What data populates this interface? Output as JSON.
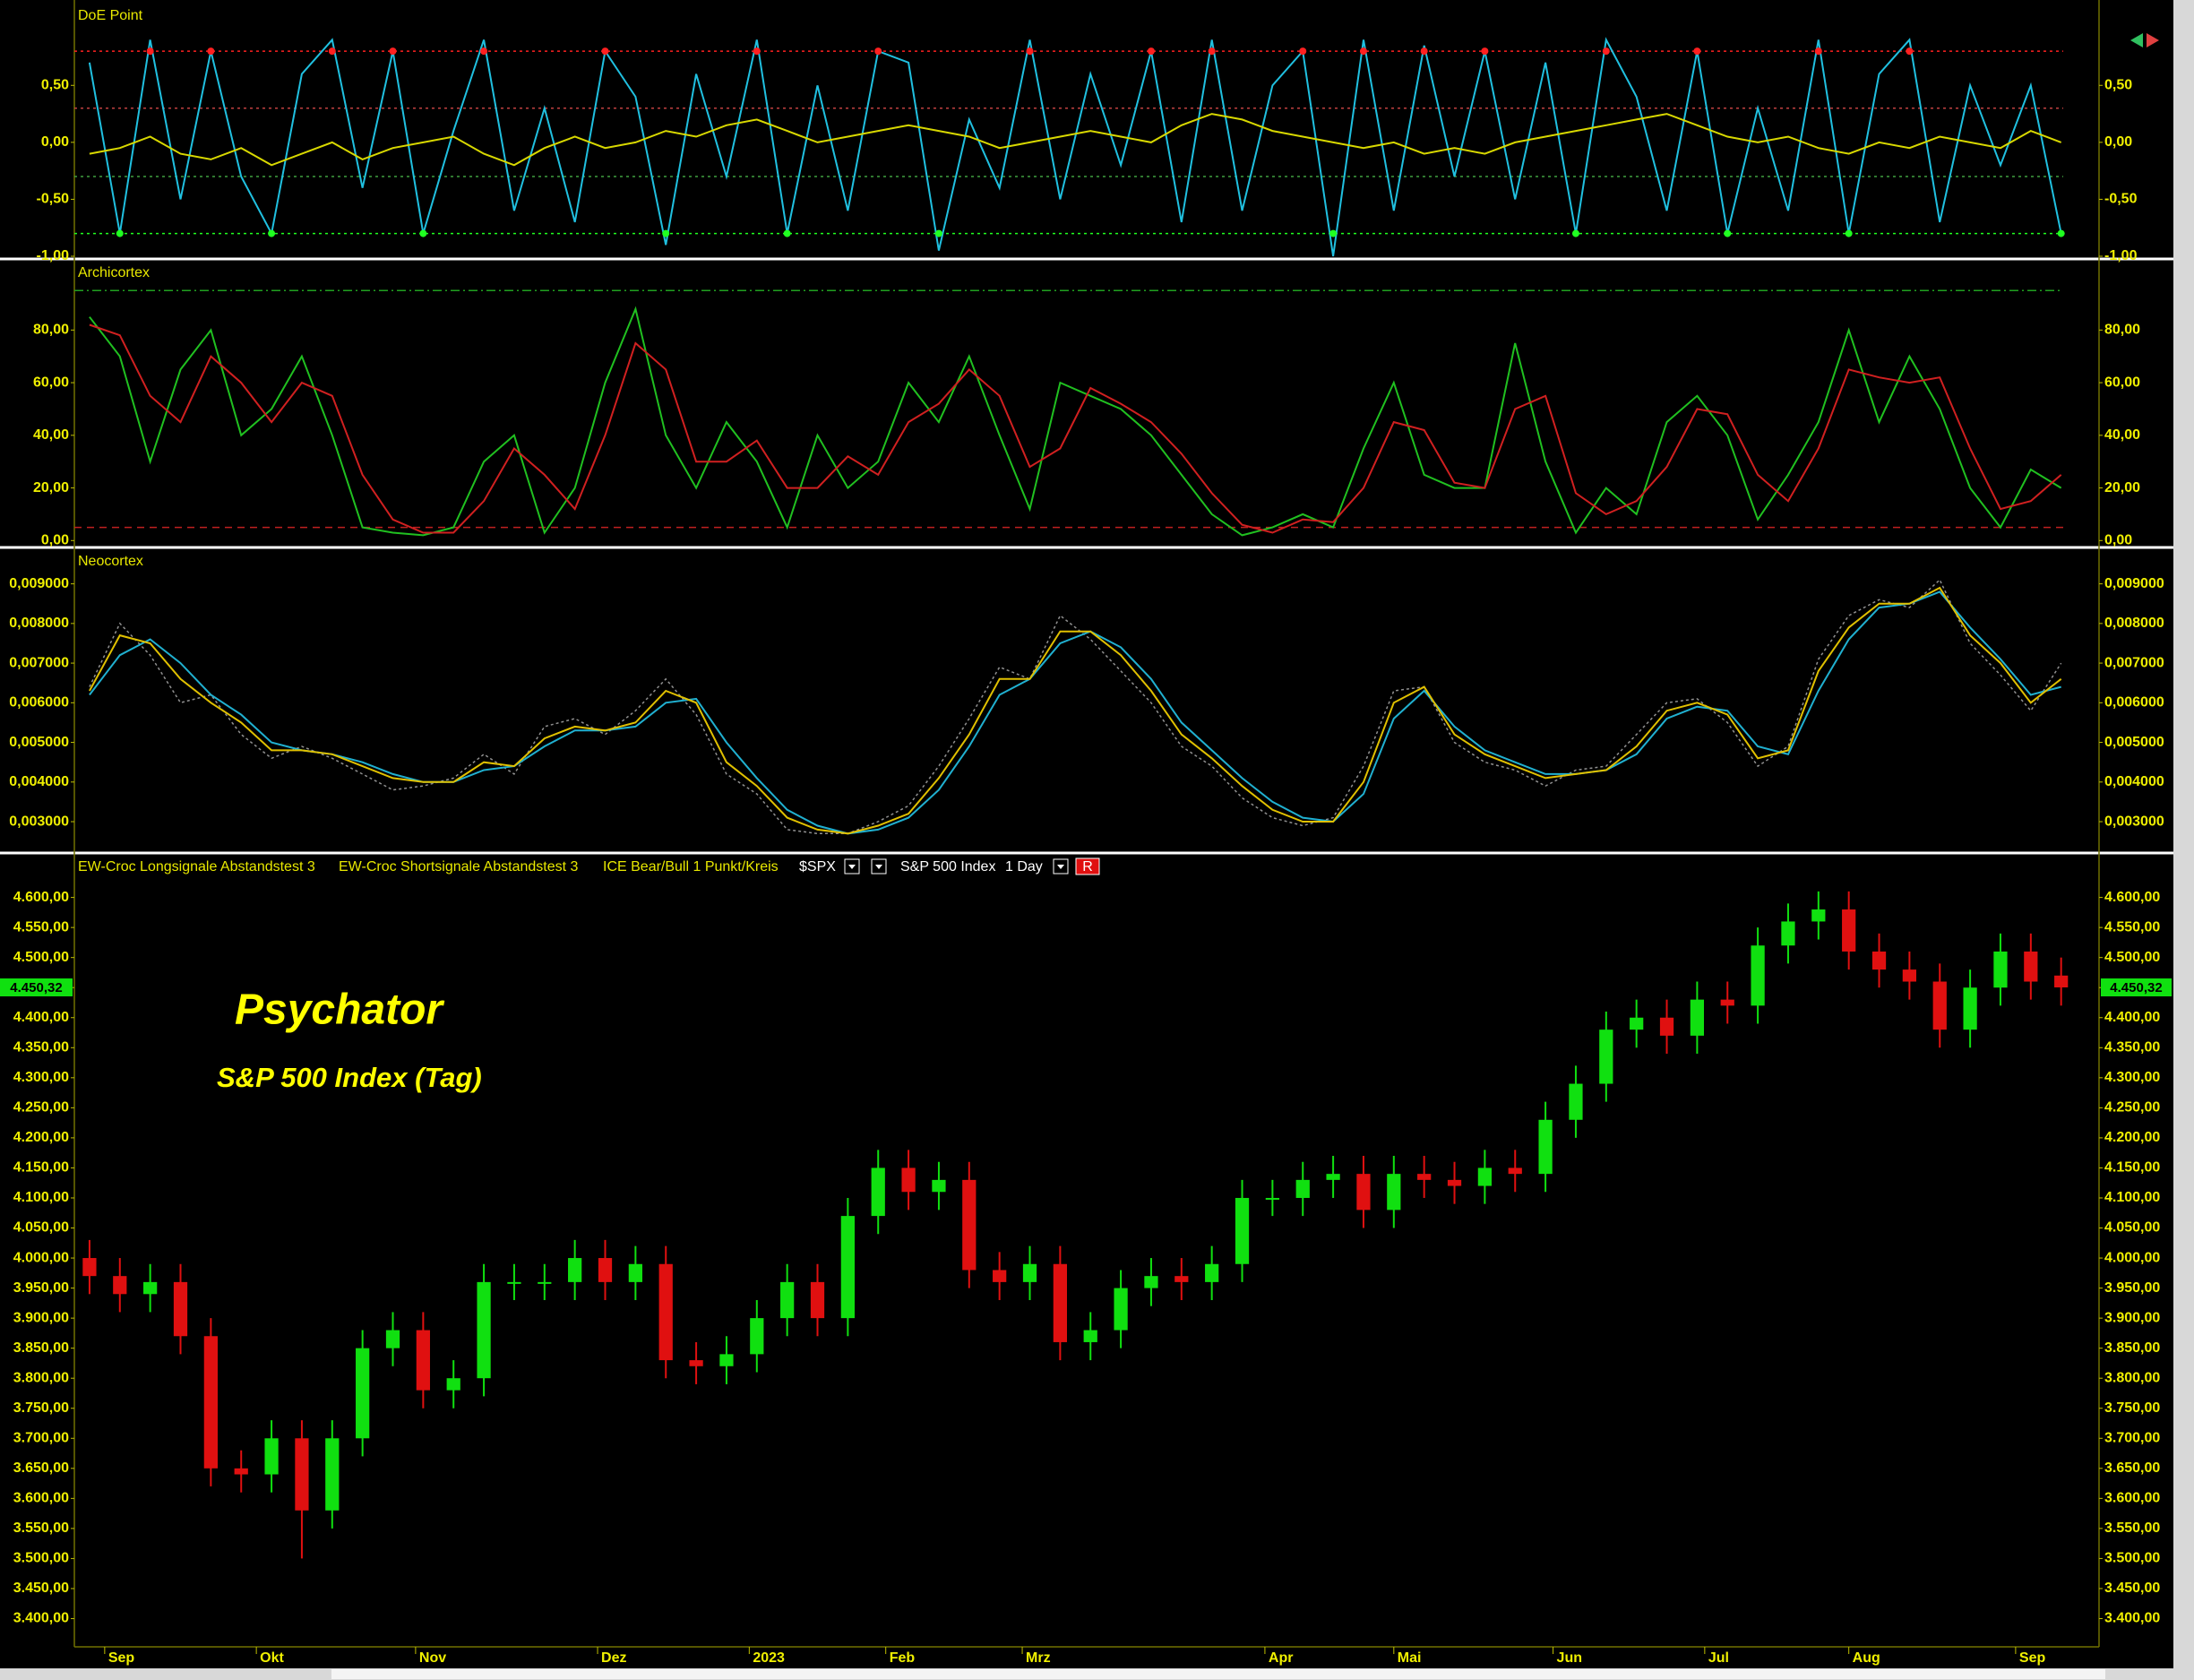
{
  "chart_data": [
    {
      "type": "line",
      "title": "DoE Point",
      "ylim": [
        -1,
        1.21
      ],
      "yticks": [
        {
          "value": 0.5,
          "label": "0,50"
        },
        {
          "value": 0,
          "label": "0,00"
        },
        {
          "value": -0.5,
          "label": "-0,50"
        },
        {
          "value": -1,
          "label": "-1,00"
        }
      ],
      "levels": [
        {
          "value": 0.8,
          "color": "#ff2020",
          "signal": true
        },
        {
          "value": 0.3,
          "color": "#c04040"
        },
        {
          "value": -0.3,
          "color": "#40a040"
        },
        {
          "value": -0.8,
          "color": "#20ff20",
          "signal": true
        }
      ],
      "series": [
        {
          "color": "#20c0e0",
          "values": [
            0.7,
            -0.8,
            0.9,
            -0.5,
            0.8,
            -0.3,
            -0.8,
            0.6,
            0.9,
            -0.4,
            0.8,
            -0.8,
            0.1,
            0.9,
            -0.6,
            0.3,
            -0.7,
            0.8,
            0.4,
            -0.9,
            0.6,
            -0.3,
            0.9,
            -0.8,
            0.5,
            -0.6,
            0.8,
            0.7,
            -0.95,
            0.2,
            -0.4,
            0.9,
            -0.5,
            0.6,
            -0.2,
            0.8,
            -0.7,
            0.9,
            -0.6,
            0.5,
            0.8,
            -1.0,
            0.9,
            -0.6,
            0.85,
            -0.3,
            0.8,
            -0.5,
            0.7,
            -0.8,
            0.9,
            0.4,
            -0.6,
            0.8,
            -0.8,
            0.3,
            -0.6,
            0.9,
            -0.8,
            0.6,
            0.9,
            -0.7,
            0.5,
            -0.2,
            0.5,
            -0.8
          ]
        },
        {
          "color": "#d8d800",
          "values": [
            -0.1,
            -0.05,
            0.05,
            -0.1,
            -0.15,
            -0.05,
            -0.2,
            -0.1,
            0.0,
            -0.15,
            -0.05,
            0.0,
            0.05,
            -0.1,
            -0.2,
            -0.05,
            0.05,
            -0.05,
            0.0,
            0.1,
            0.05,
            0.15,
            0.2,
            0.1,
            0.0,
            0.05,
            0.1,
            0.15,
            0.1,
            0.05,
            -0.05,
            0.0,
            0.05,
            0.1,
            0.05,
            0.0,
            0.15,
            0.25,
            0.2,
            0.1,
            0.05,
            0.0,
            -0.05,
            0.0,
            -0.1,
            -0.05,
            -0.1,
            0.0,
            0.05,
            0.1,
            0.15,
            0.2,
            0.25,
            0.15,
            0.05,
            0.0,
            0.05,
            -0.05,
            -0.1,
            0.0,
            -0.05,
            0.05,
            0.0,
            -0.05,
            0.1,
            0.0
          ]
        }
      ]
    },
    {
      "type": "line",
      "title": "Archicortex",
      "ylim": [
        -1.6,
        106
      ],
      "yticks": [
        {
          "value": 80,
          "label": "80,00"
        },
        {
          "value": 60,
          "label": "60,00"
        },
        {
          "value": 40,
          "label": "40,00"
        },
        {
          "value": 20,
          "label": "20,00"
        },
        {
          "value": 0,
          "label": "0,00"
        }
      ],
      "levels": [
        {
          "value": 95,
          "color": "#20a020"
        },
        {
          "value": 5,
          "color": "#c02020"
        }
      ],
      "series": [
        {
          "color": "#20c020",
          "values": [
            85,
            70,
            30,
            65,
            80,
            40,
            50,
            70,
            40,
            5,
            3,
            2,
            5,
            30,
            40,
            3,
            20,
            60,
            88,
            40,
            20,
            45,
            30,
            5,
            40,
            20,
            30,
            60,
            45,
            70,
            40,
            12,
            60,
            55,
            50,
            40,
            25,
            10,
            2,
            5,
            10,
            5,
            35,
            60,
            25,
            20,
            20,
            75,
            30,
            3,
            20,
            10,
            45,
            55,
            40,
            8,
            25,
            45,
            80,
            45,
            70,
            50,
            20,
            5,
            27,
            20
          ]
        },
        {
          "color": "#d02020",
          "values": [
            82,
            78,
            55,
            45,
            70,
            60,
            45,
            60,
            55,
            25,
            8,
            3,
            3,
            15,
            35,
            25,
            12,
            40,
            75,
            65,
            30,
            30,
            38,
            20,
            20,
            32,
            25,
            45,
            52,
            65,
            55,
            28,
            35,
            58,
            52,
            45,
            33,
            18,
            6,
            3,
            8,
            7,
            20,
            45,
            42,
            22,
            20,
            50,
            55,
            18,
            10,
            15,
            28,
            50,
            48,
            25,
            15,
            35,
            65,
            62,
            60,
            62,
            35,
            12,
            15,
            25
          ]
        }
      ]
    },
    {
      "type": "line",
      "title": "Neocortex",
      "ylim": [
        0.0023,
        0.00985
      ],
      "yticks": [
        {
          "value": 0.009,
          "label": "0,009000"
        },
        {
          "value": 0.008,
          "label": "0,008000"
        },
        {
          "value": 0.007,
          "label": "0,007000"
        },
        {
          "value": 0.006,
          "label": "0,006000"
        },
        {
          "value": 0.005,
          "label": "0,005000"
        },
        {
          "value": 0.004,
          "label": "0,004000"
        },
        {
          "value": 0.003,
          "label": "0,003000"
        }
      ],
      "series": [
        {
          "color": "#909090",
          "dash": true,
          "values": [
            0.0064,
            0.008,
            0.0072,
            0.006,
            0.0062,
            0.0052,
            0.0046,
            0.0049,
            0.0046,
            0.0042,
            0.0038,
            0.0039,
            0.0041,
            0.0047,
            0.0042,
            0.0054,
            0.0056,
            0.0052,
            0.0058,
            0.0066,
            0.0057,
            0.0042,
            0.0037,
            0.0028,
            0.0027,
            0.0027,
            0.003,
            0.0034,
            0.0044,
            0.0056,
            0.0069,
            0.0066,
            0.0082,
            0.0076,
            0.0068,
            0.006,
            0.0049,
            0.0044,
            0.0036,
            0.0031,
            0.0029,
            0.0031,
            0.0044,
            0.0063,
            0.0064,
            0.005,
            0.0045,
            0.0043,
            0.0039,
            0.0043,
            0.0044,
            0.0052,
            0.006,
            0.0061,
            0.0055,
            0.0044,
            0.0049,
            0.0071,
            0.0082,
            0.0086,
            0.0084,
            0.0091,
            0.0075,
            0.0067,
            0.0058,
            0.007
          ]
        },
        {
          "color": "#20b0d0",
          "values": [
            0.0062,
            0.0072,
            0.0076,
            0.007,
            0.0062,
            0.0057,
            0.005,
            0.0048,
            0.0047,
            0.0045,
            0.0042,
            0.004,
            0.004,
            0.0043,
            0.0044,
            0.0049,
            0.0053,
            0.0053,
            0.0054,
            0.006,
            0.0061,
            0.005,
            0.0041,
            0.0033,
            0.0029,
            0.0027,
            0.0028,
            0.0031,
            0.0038,
            0.0049,
            0.0062,
            0.0066,
            0.0075,
            0.0078,
            0.0074,
            0.0066,
            0.0055,
            0.0048,
            0.0041,
            0.0035,
            0.0031,
            0.003,
            0.0037,
            0.0056,
            0.0063,
            0.0054,
            0.0048,
            0.0045,
            0.0042,
            0.0042,
            0.0043,
            0.0047,
            0.0056,
            0.0059,
            0.0058,
            0.0049,
            0.0047,
            0.0063,
            0.0076,
            0.0084,
            0.0085,
            0.0088,
            0.0079,
            0.0071,
            0.0062,
            0.0064
          ]
        },
        {
          "color": "#e0c000",
          "values": [
            0.0063,
            0.0077,
            0.0075,
            0.0066,
            0.006,
            0.0055,
            0.0048,
            0.0048,
            0.0047,
            0.0044,
            0.0041,
            0.004,
            0.004,
            0.0045,
            0.0044,
            0.0051,
            0.0054,
            0.0053,
            0.0055,
            0.0063,
            0.006,
            0.0045,
            0.0039,
            0.0031,
            0.0028,
            0.0027,
            0.0029,
            0.0032,
            0.0041,
            0.0052,
            0.0066,
            0.0066,
            0.0078,
            0.0078,
            0.0072,
            0.0063,
            0.0052,
            0.0046,
            0.0039,
            0.0033,
            0.003,
            0.003,
            0.004,
            0.006,
            0.0064,
            0.0052,
            0.0047,
            0.0044,
            0.0041,
            0.0042,
            0.0043,
            0.0049,
            0.0058,
            0.006,
            0.0057,
            0.0046,
            0.0048,
            0.0068,
            0.0079,
            0.0085,
            0.0085,
            0.0089,
            0.0077,
            0.007,
            0.006,
            0.0066
          ]
        }
      ]
    },
    {
      "type": "candlestick",
      "title": "Psychator",
      "subtitle": "S&P 500 Index (Tag)",
      "header": [
        "EW-Croc Longsignale Abstandstest 3",
        "EW-Croc Shortsignale Abstandstest 3",
        "ICE Bear/Bull 1 Punkt/Kreis",
        "$SPX",
        "S&P 500 Index",
        "1 Day",
        "R"
      ],
      "last_label": "4.450,32",
      "up_color": "#10e010",
      "down_color": "#e01010",
      "x": [
        0,
        4,
        8,
        12,
        16,
        20,
        24,
        28,
        32,
        36,
        40,
        44,
        48,
        52,
        56,
        60,
        64,
        68,
        72,
        76,
        80,
        84,
        88,
        92,
        96,
        100,
        104,
        108,
        112,
        116,
        120,
        124,
        128,
        132,
        136,
        140,
        144,
        148,
        152,
        156,
        160,
        164,
        168,
        172,
        176,
        180,
        184,
        188,
        192,
        196,
        200,
        204,
        208,
        212,
        216,
        220,
        224,
        228,
        232,
        236,
        240,
        244,
        248,
        252,
        256,
        260
      ],
      "xlim": [
        -2,
        265
      ],
      "xticks": [
        {
          "value": 2,
          "label": "Sep"
        },
        {
          "value": 22,
          "label": "Okt"
        },
        {
          "value": 43,
          "label": "Nov"
        },
        {
          "value": 67,
          "label": "Dez"
        },
        {
          "value": 87,
          "label": "2023"
        },
        {
          "value": 105,
          "label": "Feb"
        },
        {
          "value": 123,
          "label": "Mrz"
        },
        {
          "value": 155,
          "label": "Apr"
        },
        {
          "value": 172,
          "label": "Mai"
        },
        {
          "value": 193,
          "label": "Jun"
        },
        {
          "value": 213,
          "label": "Jul"
        },
        {
          "value": 232,
          "label": "Aug"
        },
        {
          "value": 254,
          "label": "Sep"
        }
      ],
      "open": [
        4000,
        3970,
        3940,
        3960,
        3870,
        3650,
        3640,
        3700,
        3580,
        3700,
        3850,
        3880,
        3780,
        3800,
        3960,
        3960,
        3960,
        4000,
        3960,
        3990,
        3830,
        3820,
        3840,
        3900,
        3960,
        3900,
        4070,
        4150,
        4110,
        4130,
        3980,
        3960,
        3990,
        3860,
        3880,
        3950,
        3970,
        3960,
        3990,
        4100,
        4100,
        4130,
        4140,
        4080,
        4140,
        4130,
        4120,
        4150,
        4140,
        4230,
        4290,
        4380,
        4400,
        4370,
        4430,
        4420,
        4520,
        4560,
        4580,
        4510,
        4480,
        4460,
        4380,
        4450,
        4510,
        4470
      ],
      "high": [
        4030,
        4000,
        3990,
        3990,
        3900,
        3680,
        3730,
        3730,
        3730,
        3880,
        3910,
        3910,
        3830,
        3990,
        3990,
        3990,
        4030,
        4030,
        4020,
        4020,
        3860,
        3870,
        3930,
        3990,
        3990,
        4100,
        4180,
        4180,
        4160,
        4160,
        4010,
        4020,
        4020,
        3910,
        3980,
        4000,
        4000,
        4020,
        4130,
        4130,
        4160,
        4170,
        4170,
        4170,
        4170,
        4160,
        4180,
        4180,
        4260,
        4320,
        4410,
        4430,
        4430,
        4460,
        4460,
        4550,
        4590,
        4610,
        4610,
        4540,
        4510,
        4490,
        4480,
        4540,
        4540,
        4500
      ],
      "low": [
        3940,
        3910,
        3910,
        3840,
        3620,
        3610,
        3610,
        3500,
        3550,
        3670,
        3820,
        3750,
        3750,
        3770,
        3930,
        3930,
        3930,
        3930,
        3930,
        3800,
        3790,
        3790,
        3810,
        3870,
        3870,
        3870,
        4040,
        4080,
        4080,
        3950,
        3930,
        3930,
        3830,
        3830,
        3850,
        3920,
        3930,
        3930,
        3960,
        4070,
        4070,
        4100,
        4050,
        4050,
        4100,
        4090,
        4090,
        4110,
        4110,
        4200,
        4260,
        4350,
        4340,
        4340,
        4390,
        4390,
        4490,
        4530,
        4480,
        4450,
        4430,
        4350,
        4350,
        4420,
        4430,
        4420
      ],
      "close": [
        3970,
        3940,
        3960,
        3870,
        3650,
        3640,
        3700,
        3580,
        3700,
        3850,
        3880,
        3780,
        3800,
        3960,
        3960,
        3960,
        4000,
        3960,
        3990,
        3830,
        3820,
        3840,
        3900,
        3960,
        3900,
        4070,
        4150,
        4110,
        4130,
        3980,
        3960,
        3990,
        3860,
        3880,
        3950,
        3970,
        3960,
        3990,
        4100,
        4100,
        4130,
        4140,
        4080,
        4140,
        4130,
        4120,
        4150,
        4140,
        4230,
        4290,
        4380,
        4400,
        4370,
        4430,
        4420,
        4520,
        4560,
        4580,
        4510,
        4480,
        4460,
        4380,
        4450,
        4510,
        4460,
        4450.32
      ],
      "ylim": [
        3356,
        4668
      ],
      "yticks": [
        {
          "value": 4600,
          "label": "4.600,00"
        },
        {
          "value": 4550,
          "label": "4.550,00"
        },
        {
          "value": 4500,
          "label": "4.500,00"
        },
        {
          "value": 4450,
          "label": "4.450,00"
        },
        {
          "value": 4400,
          "label": "4.400,00"
        },
        {
          "value": 4350,
          "label": "4.350,00"
        },
        {
          "value": 4300,
          "label": "4.300,00"
        },
        {
          "value": 4250,
          "label": "4.250,00"
        },
        {
          "value": 4200,
          "label": "4.200,00"
        },
        {
          "value": 4150,
          "label": "4.150,00"
        },
        {
          "value": 4100,
          "label": "4.100,00"
        },
        {
          "value": 4050,
          "label": "4.050,00"
        },
        {
          "value": 4000,
          "label": "4.000,00"
        },
        {
          "value": 3950,
          "label": "3.950,00"
        },
        {
          "value": 3900,
          "label": "3.900,00"
        },
        {
          "value": 3850,
          "label": "3.850,00"
        },
        {
          "value": 3800,
          "label": "3.800,00"
        },
        {
          "value": 3750,
          "label": "3.750,00"
        },
        {
          "value": 3700,
          "label": "3.700,00"
        },
        {
          "value": 3650,
          "label": "3.650,00"
        },
        {
          "value": 3600,
          "label": "3.600,00"
        },
        {
          "value": 3550,
          "label": "3.550,00"
        },
        {
          "value": 3500,
          "label": "3.500,00"
        },
        {
          "value": 3450,
          "label": "3.450,00"
        },
        {
          "value": 3400,
          "label": "3.400,00"
        }
      ]
    }
  ]
}
